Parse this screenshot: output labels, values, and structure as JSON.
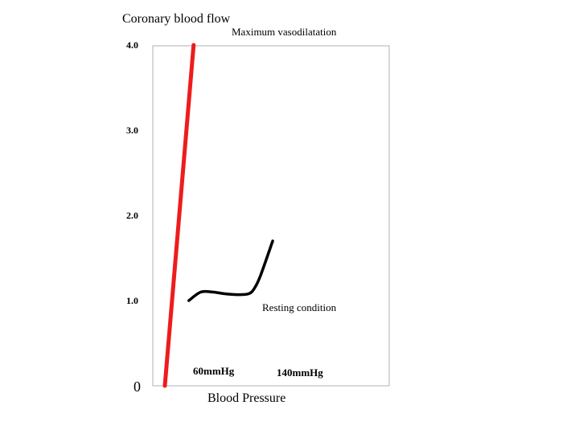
{
  "chart_data": {
    "type": "line",
    "title": "",
    "ylabel": "Coronary blood flow",
    "xlabel": "Blood Pressure",
    "y_ticks": [
      "4.0",
      "3.0",
      "2.0",
      "1.0"
    ],
    "y_tick_values": [
      4.0,
      3.0,
      2.0,
      1.0
    ],
    "y_origin_label": "0",
    "ylim": [
      0,
      4.1
    ],
    "x_unit": "mmHg",
    "x_point_labels": [
      {
        "text": "60mmHg",
        "x": 60
      },
      {
        "text": "140mmHg",
        "x": 140
      }
    ],
    "grid": false,
    "series": [
      {
        "name": "Maximum vasodilatation",
        "color": "#ee1c1c",
        "x": [
          0,
          48
        ],
        "y": [
          0,
          4.0
        ]
      },
      {
        "name": "Resting condition",
        "color": "#000000",
        "x": [
          40,
          60,
          80,
          100,
          120,
          140,
          150,
          160,
          180
        ],
        "y": [
          1.0,
          1.1,
          1.1,
          1.08,
          1.07,
          1.08,
          1.15,
          1.3,
          1.7
        ]
      }
    ]
  }
}
